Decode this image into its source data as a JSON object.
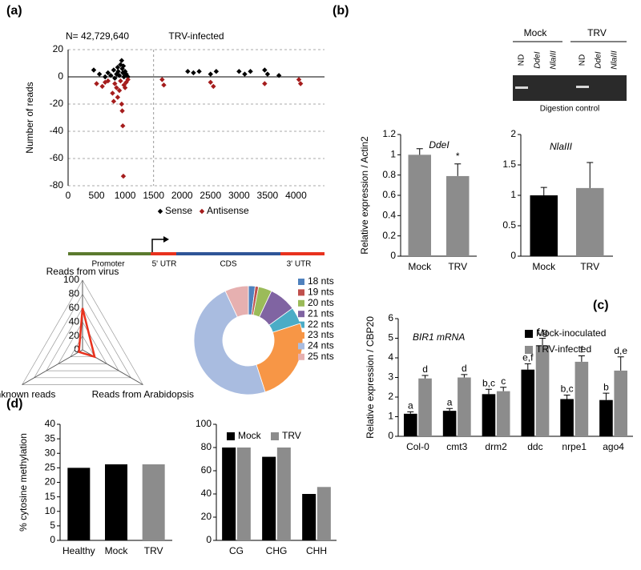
{
  "panel_labels": [
    "(a)",
    "(b)",
    "(c)",
    "(d)"
  ],
  "gene_diagram": {
    "labels": [
      "Promoter",
      "5' UTR",
      "CDS",
      "3' UTR"
    ]
  },
  "gel": {
    "groups": [
      "Mock",
      "TRV"
    ],
    "lanes": [
      "ND",
      "DdeI",
      "NlaIII",
      "ND",
      "DdeI",
      "NlaIII"
    ],
    "caption": "Digestion control"
  },
  "chart_data": [
    {
      "type": "scatter",
      "title": "TRV-infected",
      "annotation": "N= 42,729,640",
      "y_label": "Number of reads",
      "xlim": [
        0,
        4500
      ],
      "xticks": [
        0,
        500,
        1000,
        1500,
        2000,
        2500,
        3000,
        3500,
        4000
      ],
      "ylim": [
        -80,
        20
      ],
      "yticks": [
        -80,
        -60,
        -40,
        -20,
        0,
        20
      ],
      "grid": true,
      "reference_line": 1500,
      "legend": "bottom",
      "series": [
        {
          "name": "Sense",
          "color": "#000000",
          "x": [
            450,
            550,
            650,
            700,
            750,
            800,
            820,
            850,
            870,
            880,
            900,
            920,
            940,
            950,
            960,
            970,
            980,
            1000,
            1020,
            1050,
            2100,
            2200,
            2300,
            2500,
            2600,
            3000,
            3100,
            3200,
            3450,
            3500,
            3700
          ],
          "values": [
            5,
            2,
            0,
            3,
            1,
            5,
            -1,
            2,
            7,
            4,
            1,
            9,
            12,
            6,
            3,
            8,
            0,
            4,
            2,
            0,
            4,
            3,
            4,
            2,
            4,
            4,
            2,
            4,
            5,
            2,
            1
          ]
        },
        {
          "name": "Antisense",
          "color": "#a51c1c",
          "x": [
            500,
            600,
            650,
            700,
            780,
            800,
            820,
            850,
            870,
            900,
            920,
            940,
            950,
            960,
            970,
            980,
            1000,
            1020,
            1050,
            1650,
            1680,
            2500,
            2550,
            3450,
            4050,
            4080
          ],
          "values": [
            -5,
            -7,
            -4,
            -3,
            -12,
            -18,
            -5,
            -8,
            -15,
            -10,
            -3,
            -20,
            -25,
            -36,
            -73,
            -6,
            -8,
            -4,
            -2,
            -2,
            -6,
            -4,
            -7,
            -5,
            -2,
            -5
          ]
        }
      ]
    },
    {
      "type": "bar",
      "title": "DdeI",
      "y_label": "Relative expression / Actin2",
      "categories": [
        "Mock",
        "TRV"
      ],
      "values": [
        1,
        0.79
      ],
      "errors": [
        0.06,
        0.12
      ],
      "colors": [
        "#8c8c8c",
        "#8c8c8c"
      ],
      "significance": [
        null,
        "*"
      ],
      "ylim": [
        0,
        1.2
      ],
      "yticks": [
        0,
        0.2,
        0.4,
        0.6,
        0.8,
        1,
        1.2
      ]
    },
    {
      "type": "bar",
      "title": "NlaIII",
      "categories": [
        "Mock",
        "TRV"
      ],
      "values": [
        1,
        1.12
      ],
      "errors": [
        0.13,
        0.42
      ],
      "colors": [
        "#000000",
        "#8c8c8c"
      ],
      "ylim": [
        0,
        2
      ],
      "yticks": [
        0,
        0.5,
        1,
        1.5,
        2
      ]
    },
    {
      "type": "bar",
      "title": "BIR1 mRNA",
      "y_label": "Relative expression / CBP20",
      "legend": "top-right",
      "categories": [
        "Col-0",
        "cmt3",
        "drm2",
        "ddc",
        "nrpe1",
        "ago4"
      ],
      "ylim": [
        0,
        6
      ],
      "yticks": [
        0,
        1,
        2,
        3,
        4,
        5,
        6
      ],
      "series": [
        {
          "name": "Mock-inoculated",
          "color": "#000000",
          "values": [
            1.15,
            1.3,
            2.15,
            3.4,
            1.9,
            1.85
          ],
          "errors": [
            0.1,
            0.12,
            0.25,
            0.3,
            0.2,
            0.35
          ],
          "letters": [
            "a",
            "a",
            "b,c",
            "e,f",
            "b,c",
            "b"
          ]
        },
        {
          "name": "TRV-infected",
          "color": "#8c8c8c",
          "values": [
            2.95,
            3.0,
            2.3,
            4.65,
            3.8,
            3.35
          ],
          "errors": [
            0.15,
            0.15,
            0.2,
            0.35,
            0.3,
            0.7
          ],
          "letters": [
            "d",
            "d",
            "c",
            "f,g",
            "f",
            "d,e"
          ]
        }
      ]
    },
    {
      "type": "radar",
      "categories": [
        "Reads from virus",
        "Reads from Arabidopsis",
        "Unknown reads"
      ],
      "values": [
        60,
        20,
        6
      ],
      "color": "#e8321e",
      "rlim": [
        0,
        100
      ],
      "rticks": [
        0,
        20,
        40,
        60,
        80,
        100
      ]
    },
    {
      "type": "donut",
      "legend": "right",
      "categories": [
        "18 nts",
        "19 nts",
        "20 nts",
        "21 nts",
        "22 nts",
        "23 nts",
        "24 nts",
        "25 nts"
      ],
      "values": [
        2,
        1,
        4,
        8,
        5,
        25,
        48,
        7
      ],
      "colors": [
        "#4f81bd",
        "#c0504d",
        "#9bbb59",
        "#8064a2",
        "#4bacc6",
        "#f79646",
        "#a9bce0",
        "#e6b0b0"
      ]
    },
    {
      "type": "bar",
      "y_label": "% cytosine methylation",
      "categories": [
        "Healthy",
        "Mock",
        "TRV"
      ],
      "values": [
        25,
        26.2,
        26.2
      ],
      "colors": [
        "#000000",
        "#000000",
        "#8c8c8c"
      ],
      "ylim": [
        0,
        40
      ],
      "yticks": [
        0,
        5,
        10,
        15,
        20,
        25,
        30,
        35,
        40
      ]
    },
    {
      "type": "bar",
      "legend": "top",
      "categories": [
        "CG",
        "CHG",
        "CHH"
      ],
      "ylim": [
        0,
        100
      ],
      "yticks": [
        0,
        20,
        40,
        60,
        80,
        100
      ],
      "series": [
        {
          "name": "Mock",
          "color": "#000000",
          "values": [
            80,
            72,
            40
          ]
        },
        {
          "name": "TRV",
          "color": "#8c8c8c",
          "values": [
            80,
            80,
            46
          ]
        }
      ]
    }
  ]
}
